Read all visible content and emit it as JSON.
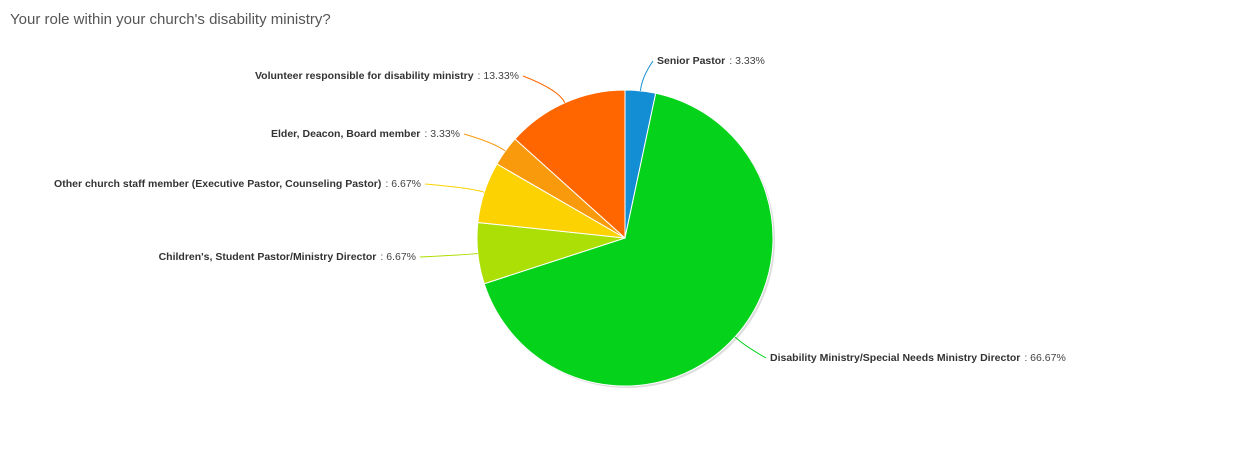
{
  "chart_data": {
    "type": "pie",
    "title": "Your role within your church's disability ministry?",
    "categories": [
      "Senior Pastor",
      "Disability Ministry/Special Needs Ministry Director",
      "Children's, Student Pastor/Ministry Director",
      "Other church staff member (Executive Pastor, Counseling Pastor)",
      "Elder, Deacon, Board member",
      "Volunteer responsible for disability ministry"
    ],
    "values": [
      3.33,
      66.67,
      6.67,
      6.67,
      3.33,
      13.33
    ],
    "value_labels": [
      ": 3.33%",
      ": 66.67%",
      ": 6.67%",
      ": 6.67%",
      ": 3.33%",
      ": 13.33%"
    ],
    "colors": [
      "#138dd4",
      "#05d21a",
      "#acdf05",
      "#fcd202",
      "#f89a0c",
      "#ff6600"
    ]
  }
}
